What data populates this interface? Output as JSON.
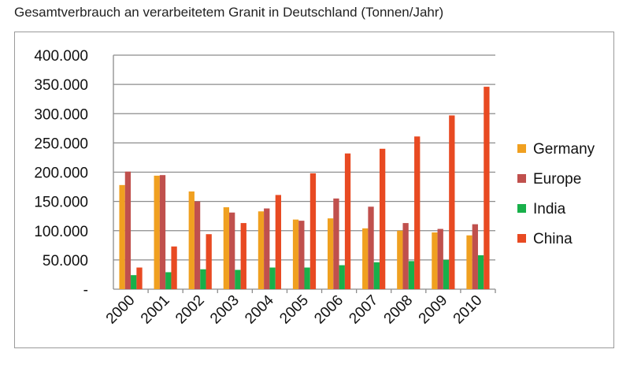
{
  "title": "Gesamtverbrauch an verarbeitetem Granit in Deutschland (Tonnen/Jahr)",
  "chart_data": {
    "type": "bar",
    "title": "",
    "xlabel": "",
    "ylabel": "",
    "categories": [
      "2000",
      "2001",
      "2002",
      "2003",
      "2004",
      "2005",
      "2006",
      "2007",
      "2008",
      "2009",
      "2010"
    ],
    "ylim": [
      0,
      400000
    ],
    "yticks": [
      {
        "value": 0,
        "label": "-"
      },
      {
        "value": 50000,
        "label": "50.000"
      },
      {
        "value": 100000,
        "label": "100.000"
      },
      {
        "value": 150000,
        "label": "150.000"
      },
      {
        "value": 200000,
        "label": "200.000"
      },
      {
        "value": 250000,
        "label": "250.000"
      },
      {
        "value": 300000,
        "label": "300.000"
      },
      {
        "value": 350000,
        "label": "350.000"
      },
      {
        "value": 400000,
        "label": "400.000"
      }
    ],
    "grid": true,
    "legend_position": "right",
    "series": [
      {
        "name": "Germany",
        "color": "#f0a020",
        "values": [
          178000,
          194000,
          167000,
          140000,
          133000,
          119000,
          121000,
          104000,
          100000,
          97000,
          92000
        ]
      },
      {
        "name": "Europe",
        "color": "#c0504d",
        "values": [
          201000,
          195000,
          150000,
          131000,
          138000,
          117000,
          155000,
          141000,
          113000,
          103000,
          111000
        ]
      },
      {
        "name": "India",
        "color": "#18b04a",
        "values": [
          24000,
          29000,
          34000,
          33000,
          37000,
          37000,
          41000,
          46000,
          48000,
          50000,
          58000
        ]
      },
      {
        "name": "China",
        "color": "#e84a22",
        "values": [
          37000,
          73000,
          94000,
          113000,
          161000,
          198000,
          232000,
          240000,
          261000,
          297000,
          346000
        ]
      }
    ]
  }
}
